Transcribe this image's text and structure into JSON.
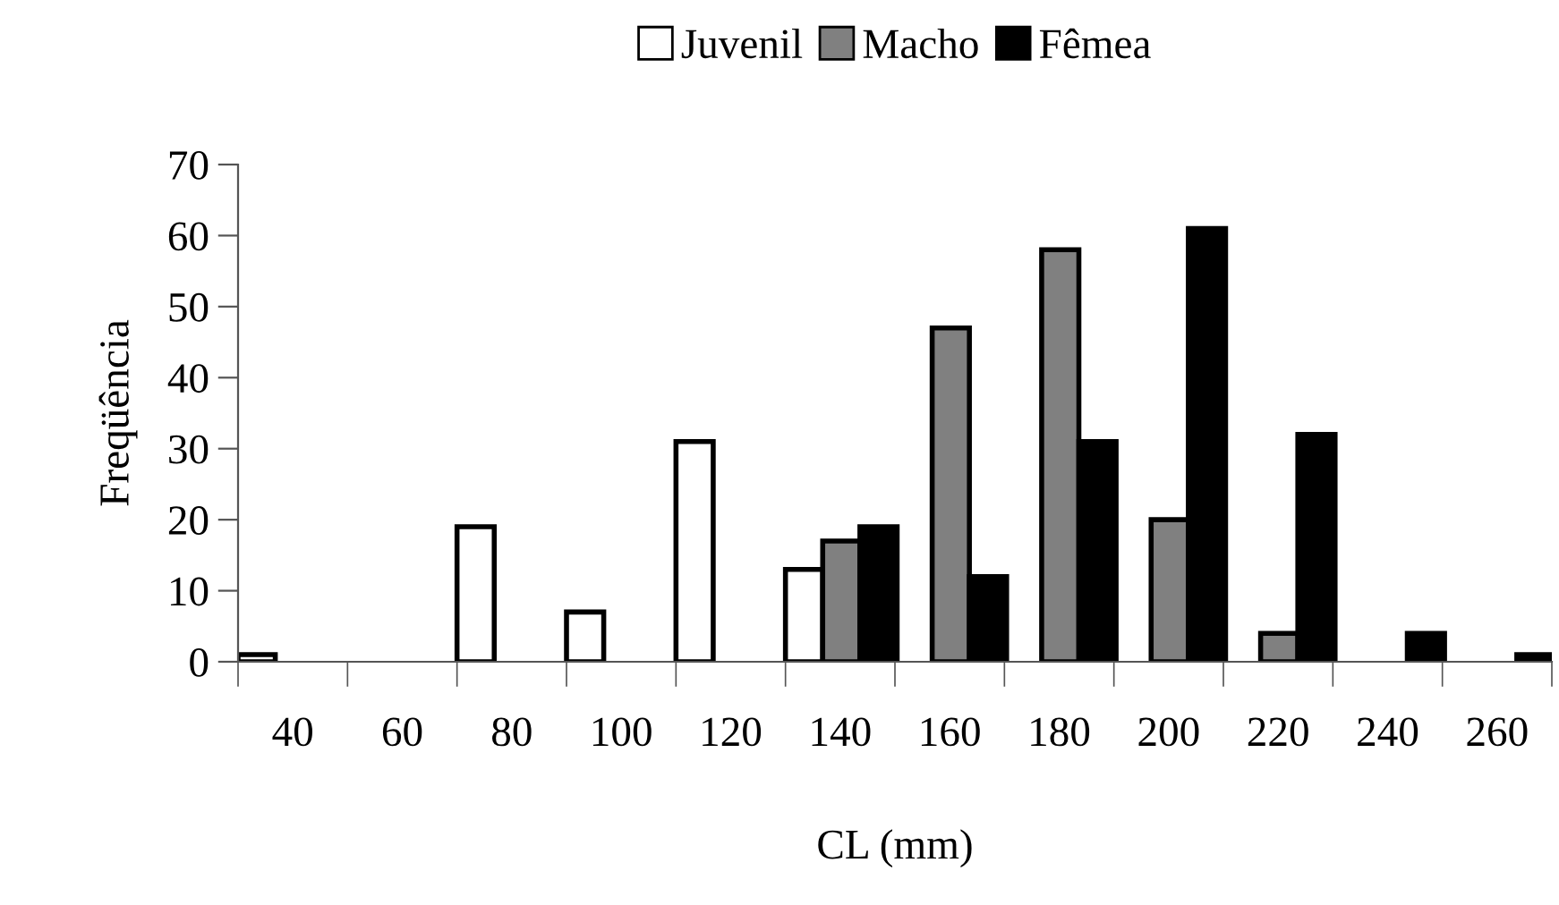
{
  "chart_data": {
    "type": "bar",
    "xlabel": "CL (mm)",
    "ylabel": "Freqüência",
    "categories": [
      "40",
      "60",
      "80",
      "100",
      "120",
      "140",
      "160",
      "180",
      "200",
      "220",
      "240",
      "260"
    ],
    "series": [
      {
        "name": "Juvenil",
        "color": "#ffffff",
        "values": [
          1,
          null,
          19,
          7,
          31,
          13,
          null,
          null,
          null,
          null,
          null,
          null
        ]
      },
      {
        "name": "Macho",
        "color": "#808080",
        "values": [
          null,
          null,
          null,
          null,
          null,
          17,
          47,
          58,
          20,
          4,
          null,
          null
        ]
      },
      {
        "name": "Fêmea",
        "color": "#000000",
        "values": [
          null,
          null,
          null,
          null,
          null,
          19,
          12,
          31,
          61,
          32,
          4,
          1
        ]
      }
    ],
    "ylim": [
      0,
      70
    ],
    "yticks": [
      0,
      10,
      20,
      30,
      40,
      50,
      60,
      70
    ],
    "grid": false,
    "legend": "top"
  }
}
